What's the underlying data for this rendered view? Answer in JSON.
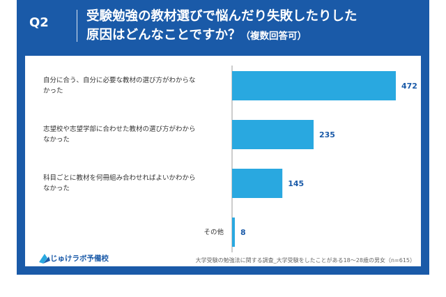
{
  "header": {
    "question_number": "Q2",
    "title_line1": "受験勉強の教材選びで悩んだり失敗したりした",
    "title_line2": "原因はどんなことですか？",
    "title_suffix": "（複数回答可）"
  },
  "chart_data": {
    "type": "bar",
    "orientation": "horizontal",
    "categories": [
      "自分に合う、自分に必要な教材の選び方がわからなかった",
      "志望校や志望学部に合わせた教材の選び方がわからなかった",
      "科目ごとに教材を何冊組み合わせればよいかわからなかった",
      "その他"
    ],
    "category_lines": [
      [
        "自分に合う、自分に必要な教材の選び方がわからな",
        "かった"
      ],
      [
        "志望校や志望学部に合わせた教材の選び方がわから",
        "なかった"
      ],
      [
        "科目ごとに教材を何冊組み合わせればよいかわから",
        "なかった"
      ],
      [
        "その他"
      ]
    ],
    "values": [
      472,
      235,
      145,
      8
    ],
    "value_labels": [
      "472",
      "235",
      "145",
      "8"
    ],
    "bar_color": "#29a8e0",
    "value_label_color": "#1a5aa8",
    "grid": false,
    "legend": "none"
  },
  "footer": {
    "logo_text": "じゅけラボ予備校",
    "source_note": "大学受験の勉強法に関する調査_大学受験をしたことがある18〜28歳の男女（n=615）"
  },
  "colors": {
    "frame": "#1a5aa8",
    "panel": "#ffffff",
    "axis": "#999999"
  }
}
